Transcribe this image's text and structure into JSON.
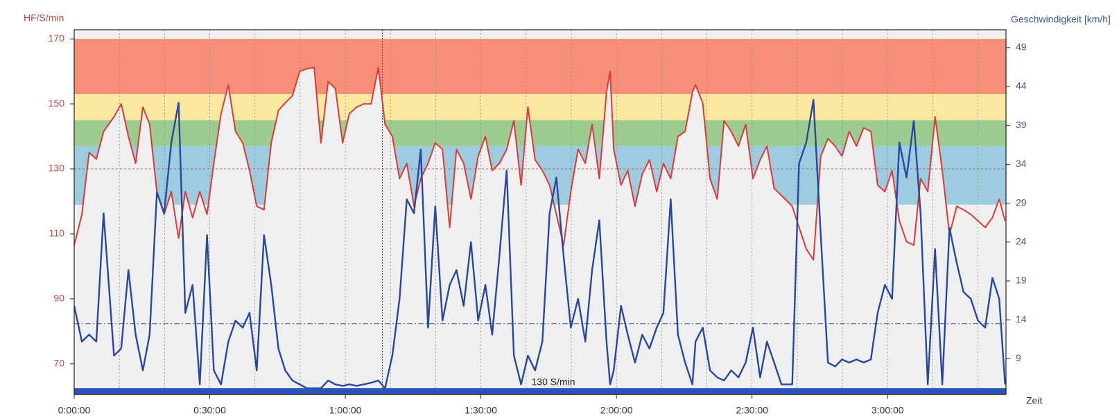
{
  "chart_data": {
    "type": "line",
    "y_label": "HF/S/min",
    "y2_label": "Geschwindigkeit [km/h]",
    "x_label": "Zeit",
    "annotation": "130 S/min",
    "xlim": [
      0,
      206.2
    ],
    "xticks": [
      {
        "value": 0,
        "label": "0:00:00"
      },
      {
        "value": 30,
        "label": "0:30:00"
      },
      {
        "value": 60,
        "label": "1:00:00"
      },
      {
        "value": 90,
        "label": "1:30:00"
      },
      {
        "value": 120,
        "label": "2:00:00"
      },
      {
        "value": 150,
        "label": "2:30:00"
      },
      {
        "value": 180,
        "label": "3:00:00"
      }
    ],
    "xgrid": [
      10,
      20,
      30,
      40,
      50,
      60,
      70,
      80,
      90,
      100,
      110,
      120,
      130,
      140,
      150,
      160,
      170,
      180,
      190,
      200
    ],
    "ylim": [
      60.6,
      172.8
    ],
    "yticks": [
      70,
      90,
      110,
      130,
      150,
      170
    ],
    "y2lim": [
      4.4,
      51.3
    ],
    "y2ticks": [
      9,
      14,
      19,
      24,
      29,
      34,
      39,
      44,
      49
    ],
    "zones": [
      {
        "from": 119,
        "to": 137,
        "color": "#9dcbe0"
      },
      {
        "from": 137,
        "to": 145,
        "color": "#9ccc8f"
      },
      {
        "from": 145,
        "to": 153,
        "color": "#fbe8a0"
      },
      {
        "from": 153,
        "to": 170,
        "color": "#f78f78"
      }
    ],
    "hr_reference": 130,
    "speed_reference": 13.5,
    "cursor_x": 68.2,
    "x": [
      0,
      1.7,
      3.3,
      4.9,
      6.5,
      8.8,
      10.4,
      12,
      13.6,
      15.2,
      16.7,
      18.3,
      19.9,
      21.5,
      23.1,
      24.6,
      26.2,
      27.8,
      29.4,
      30.9,
      32.5,
      34.1,
      35.7,
      37.3,
      38.8,
      40.4,
      42,
      43.6,
      45.2,
      46.7,
      48.3,
      49.9,
      51.5,
      53.1,
      54.6,
      56.2,
      57.8,
      59.4,
      60.9,
      62.5,
      64.1,
      65.7,
      67.3,
      68.8,
      70.4,
      72,
      73.6,
      75.2,
      76.7,
      78.3,
      79.9,
      81.5,
      83.1,
      84.6,
      86.2,
      87.8,
      89.4,
      91,
      92.5,
      94.1,
      95.7,
      97.3,
      98.9,
      100.4,
      102,
      103.6,
      105.2,
      106.7,
      108.3,
      109.9,
      111.5,
      113.1,
      114.6,
      116.2,
      117.8,
      118.6,
      119.4,
      121,
      122.5,
      124.1,
      125.7,
      127.3,
      128.9,
      130.4,
      132,
      133.6,
      135.2,
      136.8,
      137.5,
      139.1,
      140.7,
      142.3,
      143.8,
      145.4,
      147,
      148.6,
      150.2,
      151.8,
      153.3,
      154.9,
      156.5,
      158.9,
      160.4,
      162,
      163.6,
      165.2,
      166.8,
      168.4,
      169.9,
      171.5,
      173.1,
      174.7,
      176.3,
      177.8,
      179.4,
      181,
      182.6,
      184.2,
      185.8,
      187.3,
      188.9,
      190.5,
      192.1,
      193.7,
      195.3,
      196.8,
      198.4,
      200,
      201.6,
      203.2,
      204.7,
      206
    ],
    "series": [
      {
        "name": "HF",
        "color": "#dc3a37",
        "axis": "y",
        "values": [
          106.5,
          116,
          135,
          133,
          141.5,
          146,
          150,
          140,
          131.7,
          149,
          143.7,
          123,
          116,
          123,
          108.7,
          123,
          115,
          123,
          116,
          131.7,
          147,
          155.8,
          141.5,
          138,
          129.5,
          118.5,
          117.4,
          138,
          148,
          150.3,
          152.5,
          160,
          160.8,
          161.2,
          138,
          156.9,
          154.7,
          138,
          147,
          149,
          150,
          150,
          161.2,
          143.7,
          140,
          127,
          131.7,
          118.5,
          127,
          131.7,
          138,
          136,
          112,
          136,
          131.7,
          120.7,
          133.9,
          140,
          129.5,
          131.7,
          136,
          144.8,
          125,
          149,
          132.8,
          129.5,
          125,
          116,
          106.5,
          123,
          136,
          131.7,
          143.7,
          127,
          153.6,
          160,
          136,
          125,
          129.5,
          118.5,
          128.4,
          132.8,
          123,
          131.7,
          127,
          140,
          141.5,
          153.6,
          155.8,
          150.3,
          127,
          120.7,
          144.8,
          141.5,
          137,
          143.7,
          127,
          132.8,
          137,
          124,
          121.8,
          118.5,
          112,
          105.4,
          102,
          133.9,
          139.3,
          137,
          133.9,
          141.5,
          137,
          142.6,
          141.5,
          125,
          123,
          129.5,
          114,
          107.6,
          106.5,
          127,
          123,
          146,
          129.5,
          109.8,
          118.5,
          117.4,
          116,
          114,
          112,
          115,
          120.7,
          114
        ]
      },
      {
        "name": "Geschwindigkeit",
        "color": "#2847a0",
        "axis": "y2",
        "values": [
          15.8,
          11.2,
          12.1,
          11.2,
          27.7,
          9.4,
          10.3,
          20.4,
          12.1,
          7.5,
          12.1,
          30.4,
          27.7,
          36.8,
          41.9,
          14.9,
          18.5,
          5.7,
          24.9,
          7.5,
          5.7,
          11.2,
          13.9,
          13,
          14.9,
          7.5,
          24.9,
          18.5,
          10.3,
          7.5,
          6.2,
          5.7,
          5.2,
          5.2,
          5.2,
          6.2,
          5.7,
          5.5,
          5.7,
          5.5,
          5.7,
          5.9,
          6.2,
          5.2,
          9.4,
          16.7,
          29.5,
          27.7,
          35.9,
          13,
          28.6,
          13.9,
          18.5,
          20.4,
          15.8,
          24,
          13.9,
          18.5,
          12.1,
          22.2,
          33.2,
          9.4,
          5.7,
          9.4,
          7.5,
          11.2,
          27.7,
          32.3,
          22.2,
          13,
          16.7,
          11.2,
          20.4,
          26.8,
          11.2,
          5.7,
          7.5,
          15.8,
          12.1,
          8.5,
          12.1,
          10.3,
          13,
          14.9,
          29.5,
          12.1,
          8.5,
          5.7,
          11.2,
          13,
          7.5,
          6.6,
          6.2,
          7.5,
          6.6,
          8.5,
          13,
          6.6,
          11.2,
          8.5,
          5.7,
          5.7,
          34.1,
          36.8,
          42.3,
          24.9,
          8.5,
          8,
          8.9,
          8.5,
          8.9,
          8.5,
          8.9,
          14.9,
          18.5,
          16.7,
          36.8,
          32.3,
          39.6,
          27.7,
          5.7,
          23.1,
          5.7,
          25.8,
          21.3,
          17.6,
          16.7,
          13.9,
          13,
          19.4,
          16.7,
          5.7
        ]
      }
    ]
  }
}
